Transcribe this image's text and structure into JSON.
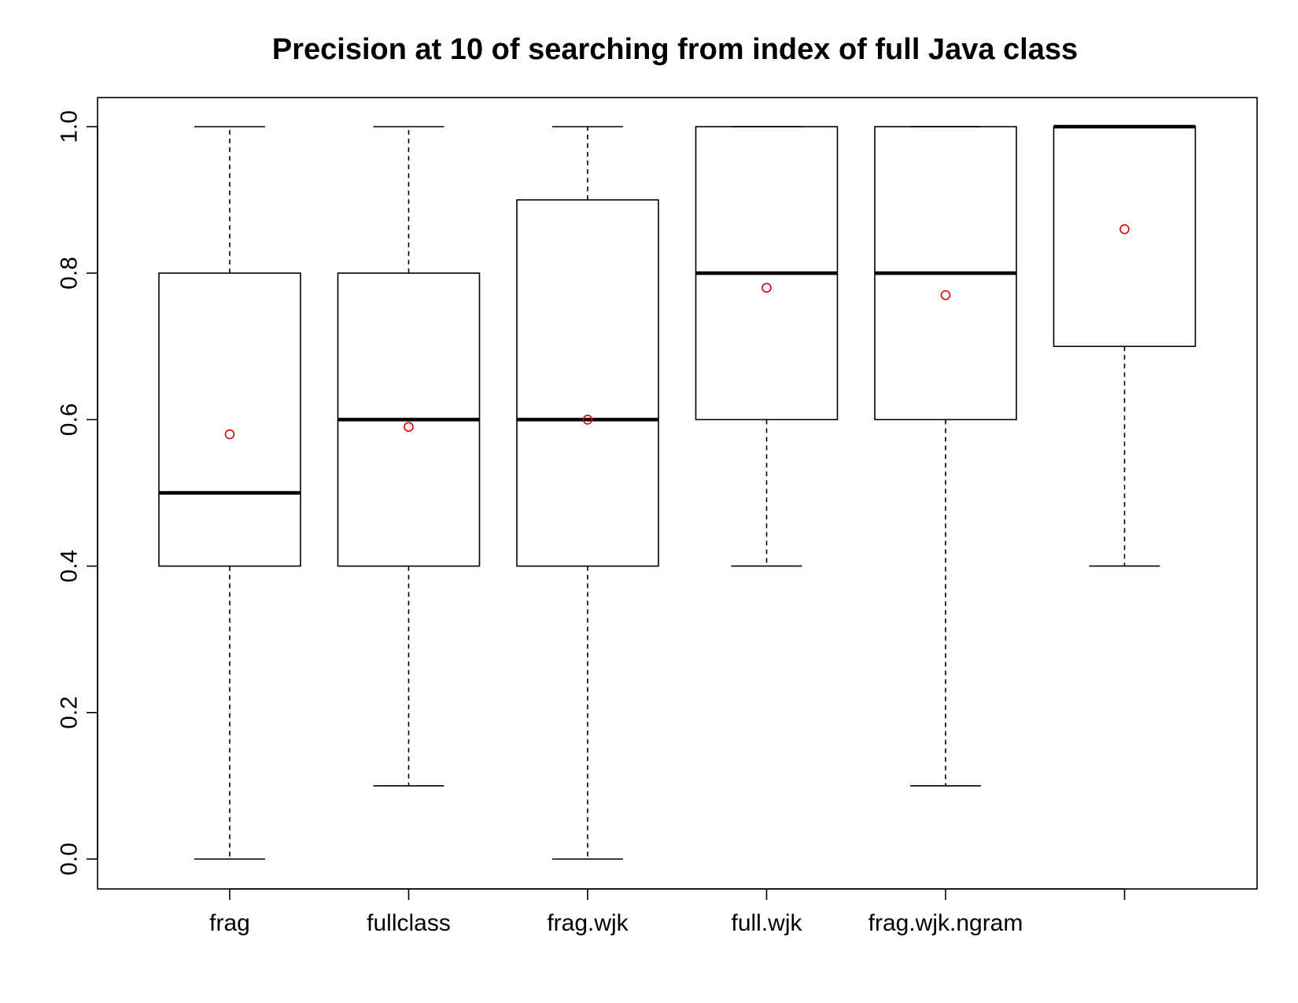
{
  "chart_data": {
    "type": "boxplot",
    "title": "Precision at 10 of searching from index of full Java class",
    "xlabel": "",
    "ylabel": "",
    "ylim": [
      0,
      1.0
    ],
    "y_ticks": [
      "0.0",
      "0.2",
      "0.4",
      "0.6",
      "0.8",
      "1.0"
    ],
    "y_tick_values": [
      0,
      0.2,
      0.4,
      0.6,
      0.8,
      1.0
    ],
    "grid": false,
    "legend": "none",
    "categories": [
      "frag",
      "fullclass",
      "frag.wjk",
      "full.wjk",
      "frag.wjk.ngram",
      ""
    ],
    "boxes": [
      {
        "whisker_low": 0.0,
        "q1": 0.4,
        "median": 0.5,
        "q3": 0.8,
        "whisker_high": 1.0,
        "mean": 0.58
      },
      {
        "whisker_low": 0.1,
        "q1": 0.4,
        "median": 0.6,
        "q3": 0.8,
        "whisker_high": 1.0,
        "mean": 0.59
      },
      {
        "whisker_low": 0.0,
        "q1": 0.4,
        "median": 0.6,
        "q3": 0.9,
        "whisker_high": 1.0,
        "mean": 0.6
      },
      {
        "whisker_low": 0.4,
        "q1": 0.6,
        "median": 0.8,
        "q3": 1.0,
        "whisker_high": 1.0,
        "mean": 0.78
      },
      {
        "whisker_low": 0.1,
        "q1": 0.6,
        "median": 0.8,
        "q3": 1.0,
        "whisker_high": 1.0,
        "mean": 0.77
      },
      {
        "whisker_low": 0.4,
        "q1": 0.7,
        "median": 1.0,
        "q3": 1.0,
        "whisker_high": 1.0,
        "mean": 0.86
      }
    ],
    "colors": {
      "box": "#000000",
      "mean_marker": "#e00000",
      "background": "#ffffff"
    }
  }
}
